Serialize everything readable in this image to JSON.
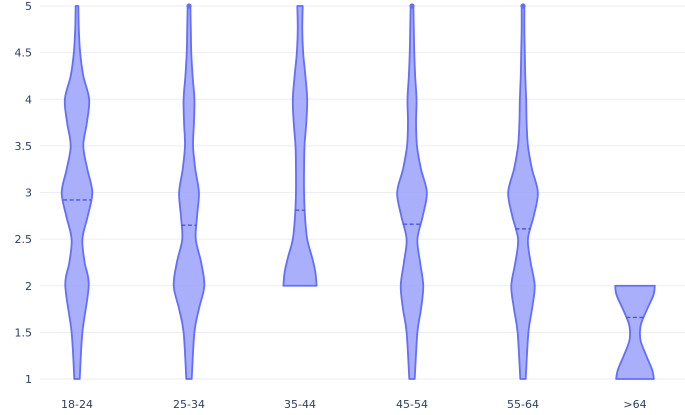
{
  "colors": {
    "violin_fill": "#9aa1fa",
    "violin_stroke": "#636efa",
    "mean_line": "#4a55e8",
    "grid": "#ebedf3",
    "tick_text": "#2a3f5f",
    "background": "#ffffff"
  },
  "chart_data": {
    "type": "violin",
    "title": "",
    "xlabel": "",
    "ylabel": "",
    "categories": [
      "18-24",
      "25-34",
      "35-44",
      "45-54",
      "55-64",
      ">64"
    ],
    "ylim": [
      1,
      5
    ],
    "yticks": [
      1,
      1.5,
      2,
      2.5,
      3,
      3.5,
      4,
      4.5,
      5
    ],
    "ytick_labels": [
      "1",
      "1.5",
      "2",
      "2.5",
      "3",
      "3.5",
      "4",
      "4.5",
      "5"
    ],
    "grid": true,
    "legend": "none",
    "series": [
      {
        "category": "18-24",
        "min": 1,
        "max": 5,
        "mean": 2.92,
        "density": [
          [
            1,
            0.06
          ],
          [
            1.5,
            0.12
          ],
          [
            2,
            0.26
          ],
          [
            2.25,
            0.17
          ],
          [
            2.5,
            0.12
          ],
          [
            2.75,
            0.24
          ],
          [
            3,
            0.34
          ],
          [
            3.25,
            0.23
          ],
          [
            3.5,
            0.14
          ],
          [
            3.75,
            0.22
          ],
          [
            4,
            0.27
          ],
          [
            4.25,
            0.14
          ],
          [
            4.5,
            0.07
          ],
          [
            4.75,
            0.04
          ],
          [
            5,
            0.03
          ]
        ],
        "outliers": []
      },
      {
        "category": "25-34",
        "min": 1,
        "max": 5,
        "mean": 2.65,
        "density": [
          [
            1,
            0.06
          ],
          [
            1.5,
            0.12
          ],
          [
            1.75,
            0.22
          ],
          [
            2,
            0.34
          ],
          [
            2.25,
            0.27
          ],
          [
            2.5,
            0.15
          ],
          [
            2.75,
            0.18
          ],
          [
            3,
            0.22
          ],
          [
            3.25,
            0.14
          ],
          [
            3.5,
            0.09
          ],
          [
            3.75,
            0.11
          ],
          [
            4,
            0.12
          ],
          [
            4.25,
            0.08
          ],
          [
            4.5,
            0.05
          ],
          [
            4.75,
            0.04
          ],
          [
            5,
            0.03
          ]
        ],
        "outliers": [
          5
        ]
      },
      {
        "category": "35-44",
        "min": 2,
        "max": 5,
        "mean": 2.81,
        "density": [
          [
            2,
            0.37
          ],
          [
            2.15,
            0.34
          ],
          [
            2.3,
            0.27
          ],
          [
            2.5,
            0.16
          ],
          [
            2.75,
            0.11
          ],
          [
            3,
            0.09
          ],
          [
            3.25,
            0.09
          ],
          [
            3.5,
            0.1
          ],
          [
            3.75,
            0.14
          ],
          [
            4,
            0.16
          ],
          [
            4.25,
            0.12
          ],
          [
            4.5,
            0.07
          ],
          [
            4.75,
            0.05
          ],
          [
            5,
            0.06
          ]
        ],
        "outliers": []
      },
      {
        "category": "45-54",
        "min": 1,
        "max": 5,
        "mean": 2.66,
        "density": [
          [
            1,
            0.06
          ],
          [
            1.5,
            0.12
          ],
          [
            1.75,
            0.2
          ],
          [
            2,
            0.25
          ],
          [
            2.25,
            0.18
          ],
          [
            2.5,
            0.12
          ],
          [
            2.75,
            0.24
          ],
          [
            3,
            0.33
          ],
          [
            3.25,
            0.2
          ],
          [
            3.5,
            0.11
          ],
          [
            3.75,
            0.09
          ],
          [
            4,
            0.1
          ],
          [
            4.25,
            0.07
          ],
          [
            4.5,
            0.05
          ],
          [
            4.75,
            0.04
          ],
          [
            5,
            0.03
          ]
        ],
        "outliers": [
          5
        ]
      },
      {
        "category": "55-64",
        "min": 1,
        "max": 5,
        "mean": 2.61,
        "density": [
          [
            1,
            0.06
          ],
          [
            1.5,
            0.12
          ],
          [
            1.75,
            0.2
          ],
          [
            2,
            0.26
          ],
          [
            2.25,
            0.17
          ],
          [
            2.5,
            0.11
          ],
          [
            2.75,
            0.24
          ],
          [
            3,
            0.33
          ],
          [
            3.25,
            0.2
          ],
          [
            3.5,
            0.11
          ],
          [
            3.75,
            0.08
          ],
          [
            4,
            0.07
          ],
          [
            4.25,
            0.05
          ],
          [
            4.5,
            0.04
          ],
          [
            4.75,
            0.03
          ],
          [
            5,
            0.03
          ]
        ],
        "outliers": [
          5
        ]
      },
      {
        "category": ">64",
        "min": 1,
        "max": 2,
        "mean": 1.66,
        "density": [
          [
            1,
            0.42
          ],
          [
            1.1,
            0.38
          ],
          [
            1.25,
            0.25
          ],
          [
            1.4,
            0.13
          ],
          [
            1.5,
            0.11
          ],
          [
            1.6,
            0.14
          ],
          [
            1.75,
            0.27
          ],
          [
            1.9,
            0.41
          ],
          [
            2,
            0.44
          ]
        ],
        "outliers": []
      }
    ]
  }
}
